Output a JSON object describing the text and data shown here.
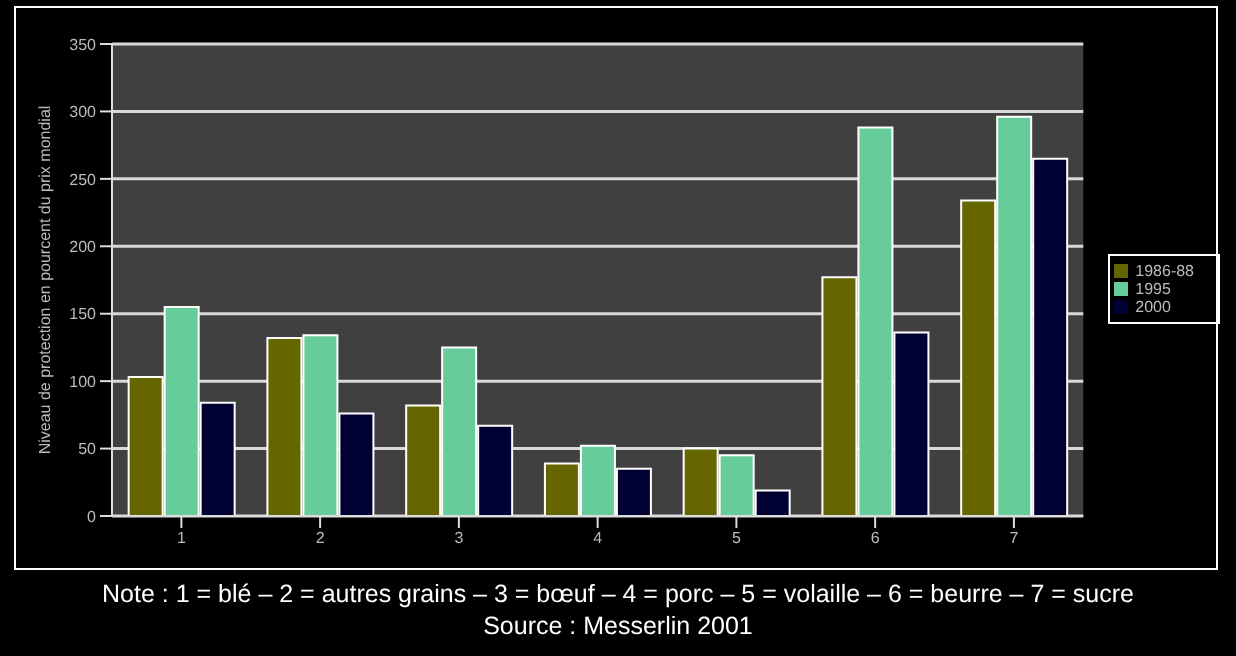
{
  "chart_data": {
    "type": "bar",
    "ylabel": "Niveau de protection en pourcent du prix mondial",
    "categories": [
      "1",
      "2",
      "3",
      "4",
      "5",
      "6",
      "7"
    ],
    "series": [
      {
        "name": "1986-88",
        "color": "#666600",
        "values": [
          103,
          132,
          82,
          39,
          50,
          177,
          234
        ]
      },
      {
        "name": "1995",
        "color": "#66cc99",
        "values": [
          155,
          134,
          125,
          52,
          45,
          288,
          296
        ]
      },
      {
        "name": "2000",
        "color": "#000033",
        "values": [
          84,
          76,
          67,
          35,
          19,
          136,
          265
        ]
      }
    ],
    "ylim": [
      0,
      350
    ],
    "yticks": [
      0,
      50,
      100,
      150,
      200,
      250,
      300,
      350
    ],
    "grid": "y",
    "legend": "right",
    "annotations": [
      "Note : 1 = blé – 2 = autres grains – 3 = bœuf – 4 = porc – 5 = volaille – 6 = beurre – 7 = sucre",
      "Source : Messerlin 2001"
    ]
  }
}
